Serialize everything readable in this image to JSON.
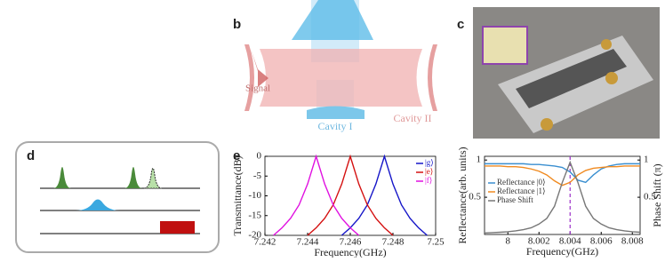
{
  "panels": {
    "b": {
      "label": "b",
      "signal": "Signal",
      "cavity1": "Cavity I",
      "cavity2": "Cavity II"
    },
    "c": {
      "label": "c"
    },
    "d": {
      "label": "d"
    },
    "e": {
      "label": "e"
    }
  },
  "chart_data": [
    {
      "type": "line",
      "xlabel": "Frequency(GHz)",
      "ylabel": "Transmittance(dB)",
      "x": [
        7.242,
        7.2424,
        7.2428,
        7.2432,
        7.2436,
        7.244,
        7.2444,
        7.2448,
        7.2452,
        7.2456,
        7.246,
        7.2464,
        7.2468,
        7.2472,
        7.2476,
        7.248,
        7.2484,
        7.2488,
        7.2492,
        7.2496,
        7.25
      ],
      "xlim": [
        7.242,
        7.25
      ],
      "xticks": [
        7.242,
        7.244,
        7.246,
        7.248,
        7.25
      ],
      "ylim": [
        -20,
        0
      ],
      "yticks": [
        -20,
        -15,
        -10,
        -5,
        0
      ],
      "series": [
        {
          "name": "|g⟩",
          "color": "#1515c8",
          "values": [
            null,
            null,
            null,
            null,
            null,
            null,
            null,
            null,
            null,
            -20,
            -18.1,
            -15.7,
            -12.3,
            -7,
            0,
            -7,
            -12.3,
            -15.7,
            -18.1,
            -20,
            null
          ]
        },
        {
          "name": "|e⟩",
          "color": "#d41010",
          "values": [
            null,
            null,
            null,
            null,
            null,
            -20,
            -18.1,
            -15.7,
            -12.3,
            -7,
            0,
            -7,
            -12.3,
            -15.7,
            -18.1,
            -20,
            null,
            null,
            null,
            null,
            null
          ]
        },
        {
          "name": "|f⟩",
          "color": "#e010e0",
          "values": [
            null,
            -20,
            -18.1,
            -15.7,
            -12.3,
            -7,
            0,
            -7,
            -12.3,
            -15.7,
            -18.1,
            -20,
            null,
            null,
            null,
            null,
            null,
            null,
            null,
            null,
            null
          ]
        }
      ]
    },
    {
      "type": "line",
      "xlabel": "Frequency(GHz)",
      "ylabel": "Reflectance(arb. units)",
      "y2label": "Phase Shift (π)",
      "x": [
        7.9985,
        7.999,
        7.9995,
        8.0,
        8.0005,
        8.001,
        8.0015,
        8.002,
        8.0025,
        8.003,
        8.0035,
        8.004,
        8.0045,
        8.005,
        8.0055,
        8.006,
        8.0065,
        8.007,
        8.0075,
        8.008,
        8.0085
      ],
      "xlim": [
        7.9985,
        8.0085
      ],
      "xticks": [
        8,
        8.002,
        8.004,
        8.006,
        8.008
      ],
      "ylim": [
        0,
        1.05
      ],
      "yticks": [
        0.5,
        1
      ],
      "y2lim": [
        0,
        1.05
      ],
      "y2ticks": [
        0.5,
        1
      ],
      "vline": 8.004,
      "vline_color": "#9b30c8",
      "series": [
        {
          "name": "Reflectance |0⟩",
          "color": "#3a8fd0",
          "values": [
            0.95,
            0.95,
            0.95,
            0.95,
            0.95,
            0.95,
            0.94,
            0.94,
            0.93,
            0.92,
            0.9,
            0.84,
            0.73,
            0.7,
            0.8,
            0.88,
            0.92,
            0.94,
            0.95,
            0.95,
            0.95
          ]
        },
        {
          "name": "Reflectance |1⟩",
          "color": "#f08a20",
          "values": [
            0.92,
            0.92,
            0.92,
            0.91,
            0.91,
            0.9,
            0.88,
            0.85,
            0.8,
            0.72,
            0.66,
            0.7,
            0.8,
            0.86,
            0.89,
            0.9,
            0.91,
            0.91,
            0.92,
            0.92,
            0.92
          ]
        },
        {
          "name": "Phase Shift",
          "color": "#777777",
          "axis": "y2",
          "values": [
            0.02,
            0.025,
            0.03,
            0.037,
            0.048,
            0.065,
            0.09,
            0.14,
            0.215,
            0.38,
            0.7,
            0.97,
            0.7,
            0.38,
            0.215,
            0.14,
            0.09,
            0.065,
            0.048,
            0.037,
            0.03
          ]
        }
      ]
    }
  ]
}
